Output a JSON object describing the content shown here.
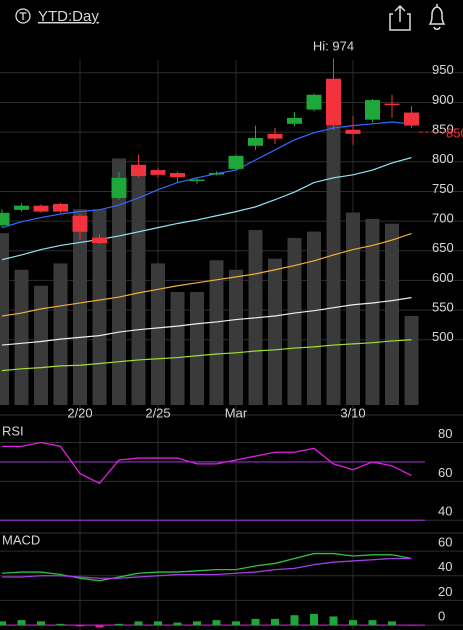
{
  "header": {
    "title": "YTD:Day"
  },
  "chart_data": [
    {
      "type": "candlestick",
      "annotation": "Hi: 974",
      "categories": [
        null,
        null,
        null,
        null,
        "2/20",
        null,
        null,
        null,
        "2/25",
        null,
        null,
        null,
        "Mar",
        null,
        null,
        null,
        null,
        null,
        "3/10",
        null,
        null,
        null
      ],
      "open": [
        693,
        719,
        726,
        729,
        709,
        672,
        739,
        795,
        786,
        781,
        768,
        779,
        788,
        827,
        847,
        864,
        888,
        940,
        854,
        871,
        898,
        883
      ],
      "high": [
        720,
        730,
        728,
        731,
        712,
        677,
        783,
        812,
        790,
        783,
        773,
        784,
        812,
        861,
        857,
        884,
        915,
        974,
        877,
        906,
        913,
        894
      ],
      "low": [
        690,
        716,
        714,
        714,
        668,
        661,
        736,
        774,
        774,
        765,
        763,
        777,
        786,
        820,
        830,
        860,
        885,
        854,
        829,
        866,
        874,
        857
      ],
      "close": [
        714,
        726,
        716,
        716,
        682,
        663,
        773,
        776,
        778,
        774,
        770,
        781,
        810,
        840,
        839,
        874,
        913,
        862,
        847,
        904,
        896,
        861
      ],
      "up_color": "#1fa83a",
      "down_color": "#f2323c",
      "ylim": [
        390,
        980
      ],
      "yticks": [
        500,
        550,
        600,
        650,
        700,
        750,
        800,
        850,
        900,
        950
      ],
      "last_price": 850,
      "moving_averages": [
        {
          "color": "#2f6bff",
          "values": [
            689,
            699,
            706,
            712,
            716,
            719,
            727,
            739,
            753,
            765,
            773,
            780,
            786,
            803,
            820,
            837,
            849,
            857,
            861,
            864,
            867,
            864
          ]
        },
        {
          "color": "#8fe6f0",
          "values": [
            635,
            643,
            652,
            659,
            664,
            669,
            675,
            682,
            689,
            696,
            702,
            709,
            716,
            724,
            736,
            749,
            765,
            773,
            778,
            786,
            798,
            807
          ]
        },
        {
          "color": "#f0b030",
          "values": [
            540,
            545,
            552,
            557,
            562,
            567,
            572,
            579,
            585,
            591,
            596,
            601,
            606,
            611,
            618,
            625,
            633,
            643,
            652,
            659,
            668,
            679
          ]
        },
        {
          "color": "#e8eef4",
          "values": [
            491,
            494,
            497,
            501,
            504,
            507,
            513,
            517,
            520,
            523,
            527,
            530,
            534,
            537,
            540,
            545,
            549,
            554,
            559,
            562,
            566,
            571
          ]
        },
        {
          "color": "#9ee030",
          "values": [
            448,
            451,
            453,
            456,
            457,
            460,
            463,
            466,
            468,
            470,
            473,
            476,
            478,
            481,
            483,
            486,
            488,
            491,
            493,
            495,
            498,
            500
          ]
        }
      ],
      "volume": {
        "color": "#3a3a3a",
        "values": [
          108,
          85,
          75,
          89,
          123,
          123,
          155,
          148,
          89,
          71,
          71,
          91,
          85,
          110,
          92,
          105,
          109,
          204,
          121,
          117,
          114,
          56
        ]
      },
      "vlim": [
        0,
        220
      ]
    },
    {
      "type": "line",
      "title": "RSI",
      "series": [
        {
          "color": "#e020e0",
          "values": [
            78,
            78,
            80,
            78,
            64,
            59,
            71,
            72,
            72,
            72,
            69,
            69,
            71,
            73,
            75,
            75,
            77,
            69,
            66,
            70,
            68,
            63
          ]
        }
      ],
      "ylim": [
        35,
        89
      ],
      "yticks": [
        40,
        60,
        80
      ],
      "ref_lines": [
        70,
        40
      ],
      "ref_color": "#9030c0"
    },
    {
      "type": "line",
      "title": "MACD",
      "series": [
        {
          "color": "#30c040",
          "values": [
            42,
            43,
            43,
            41,
            38,
            36,
            39,
            42,
            43,
            43,
            44,
            45,
            45,
            48,
            50,
            54,
            58,
            58,
            56,
            57,
            57,
            54
          ]
        },
        {
          "color": "#a040e0",
          "values": [
            39,
            39,
            40,
            40,
            39,
            38,
            38,
            39,
            40,
            41,
            41,
            41,
            42,
            43,
            45,
            46,
            49,
            51,
            52,
            53,
            54,
            54
          ]
        }
      ],
      "histogram": [
        3,
        4,
        3,
        1,
        -1,
        -2,
        1,
        3,
        3,
        2,
        3,
        4,
        3,
        5,
        5,
        8,
        9,
        7,
        4,
        4,
        3,
        0
      ],
      "ylim": [
        -4,
        69
      ],
      "yticks": [
        0,
        20,
        40,
        60
      ]
    }
  ]
}
